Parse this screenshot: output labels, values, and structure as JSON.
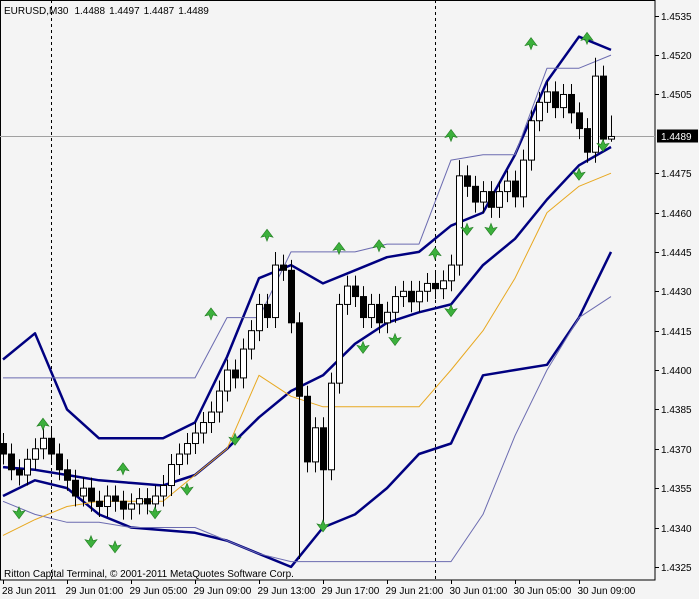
{
  "chart_data": {
    "type": "candlestick",
    "title": "EURUSD,M30",
    "annotation": "Ritton Capital Terminal, © 2001-2011 MetaQuotes Software Corp.",
    "open": [
      1.4372,
      1.4368,
      1.4362,
      1.436,
      1.4366,
      1.437,
      1.4374,
      1.4368,
      1.4362,
      1.4358,
      1.4352,
      1.4355,
      1.435,
      1.4348,
      1.4352,
      1.435,
      1.4347,
      1.4349,
      1.4351,
      1.4349,
      1.4352,
      1.4356,
      1.4364,
      1.4368,
      1.4372,
      1.4376,
      1.438,
      1.4384,
      1.4392,
      1.44,
      1.4397,
      1.4408,
      1.4415,
      1.4425,
      1.442,
      1.444,
      1.4438,
      1.4418,
      1.439,
      1.4365,
      1.4378,
      1.4362,
      1.4395,
      1.4425,
      1.4432,
      1.4428,
      1.442,
      1.4425,
      1.4418,
      1.4422,
      1.4428,
      1.443,
      1.4426,
      1.443,
      1.4433,
      1.4431,
      1.4434,
      1.444,
      1.4474,
      1.447,
      1.4464,
      1.4468,
      1.4462,
      1.4468,
      1.4472,
      1.4466,
      1.448,
      1.4495,
      1.4502,
      1.4506,
      1.45,
      1.4505,
      1.4498,
      1.4492,
      1.4483,
      1.4512,
      1.4488
    ],
    "high": [
      1.4376,
      1.4372,
      1.4366,
      1.437,
      1.4374,
      1.438,
      1.4378,
      1.4372,
      1.4366,
      1.4362,
      1.4359,
      1.4359,
      1.4354,
      1.4356,
      1.4356,
      1.4354,
      1.4353,
      1.4355,
      1.4355,
      1.4356,
      1.436,
      1.4368,
      1.4372,
      1.4376,
      1.438,
      1.4384,
      1.4388,
      1.4396,
      1.4404,
      1.4404,
      1.4412,
      1.4419,
      1.4429,
      1.4429,
      1.4445,
      1.4444,
      1.4442,
      1.4422,
      1.4394,
      1.4382,
      1.4382,
      1.4399,
      1.4429,
      1.4436,
      1.4436,
      1.4432,
      1.4429,
      1.4429,
      1.4426,
      1.4432,
      1.4434,
      1.4434,
      1.4434,
      1.4437,
      1.4437,
      1.4438,
      1.4444,
      1.448,
      1.4478,
      1.4474,
      1.4472,
      1.4472,
      1.4472,
      1.4476,
      1.4476,
      1.4484,
      1.4499,
      1.4506,
      1.451,
      1.451,
      1.4509,
      1.4509,
      1.4502,
      1.4496,
      1.4519,
      1.4516,
      1.4497
    ],
    "low": [
      1.4364,
      1.4358,
      1.4356,
      1.4356,
      1.4362,
      1.4366,
      1.4364,
      1.4358,
      1.4354,
      1.4348,
      1.4348,
      1.4346,
      1.4344,
      1.4344,
      1.4346,
      1.4343,
      1.4343,
      1.4345,
      1.4345,
      1.4345,
      1.4348,
      1.4352,
      1.436,
      1.4364,
      1.4368,
      1.4372,
      1.4376,
      1.438,
      1.4388,
      1.4393,
      1.4393,
      1.4404,
      1.4411,
      1.4416,
      1.4416,
      1.4434,
      1.4414,
      1.4328,
      1.4361,
      1.4361,
      1.434,
      1.4358,
      1.4391,
      1.4421,
      1.4424,
      1.4416,
      1.4416,
      1.4414,
      1.4414,
      1.4418,
      1.4424,
      1.4422,
      1.4422,
      1.4426,
      1.4427,
      1.4427,
      1.443,
      1.4436,
      1.4466,
      1.446,
      1.446,
      1.4458,
      1.4458,
      1.4464,
      1.4462,
      1.4462,
      1.4476,
      1.4491,
      1.4498,
      1.4496,
      1.4496,
      1.4494,
      1.4488,
      1.4479,
      1.4479,
      1.4484,
      1.4487
    ],
    "close": [
      1.4368,
      1.4362,
      1.436,
      1.4366,
      1.437,
      1.4374,
      1.4368,
      1.4362,
      1.4358,
      1.4352,
      1.4355,
      1.435,
      1.4348,
      1.4352,
      1.435,
      1.4347,
      1.4349,
      1.4351,
      1.4349,
      1.4352,
      1.4356,
      1.4364,
      1.4368,
      1.4372,
      1.4376,
      1.438,
      1.4384,
      1.4392,
      1.44,
      1.4397,
      1.4408,
      1.4415,
      1.4425,
      1.442,
      1.444,
      1.4438,
      1.4418,
      1.439,
      1.4365,
      1.4378,
      1.4362,
      1.4395,
      1.4425,
      1.4432,
      1.4428,
      1.442,
      1.4425,
      1.4418,
      1.4422,
      1.4428,
      1.443,
      1.4426,
      1.443,
      1.4433,
      1.4431,
      1.4434,
      1.444,
      1.4474,
      1.447,
      1.4464,
      1.4468,
      1.4462,
      1.4468,
      1.4472,
      1.4466,
      1.448,
      1.4495,
      1.4502,
      1.4506,
      1.45,
      1.4505,
      1.4498,
      1.4492,
      1.4483,
      1.4512,
      1.4488,
      1.4489
    ],
    "lines_x": [
      0,
      4,
      8,
      12,
      16,
      20,
      24,
      28,
      32,
      36,
      40,
      44,
      48,
      52,
      56,
      60,
      64,
      68,
      72,
      76
    ],
    "lines": [
      {
        "color": "#000080",
        "width": 2.5,
        "values": [
          1.4404,
          1.4414,
          1.4385,
          1.4374,
          1.4374,
          1.4374,
          1.438,
          1.4405,
          1.4435,
          1.444,
          1.4433,
          1.4438,
          1.4443,
          1.4445,
          1.4455,
          1.446,
          1.4482,
          1.451,
          1.4527,
          1.4522
        ]
      },
      {
        "color": "#000080",
        "width": 2.5,
        "values": [
          1.4363,
          1.4362,
          1.436,
          1.4358,
          1.4357,
          1.4356,
          1.436,
          1.437,
          1.4382,
          1.4392,
          1.4398,
          1.441,
          1.4418,
          1.4422,
          1.4425,
          1.444,
          1.445,
          1.4465,
          1.4478,
          1.4485
        ]
      },
      {
        "color": "#000080",
        "width": 2.5,
        "values": [
          1.4352,
          1.4358,
          1.4355,
          1.4345,
          1.434,
          1.4339,
          1.4338,
          1.4335,
          1.433,
          1.4325,
          1.434,
          1.4345,
          1.4355,
          1.4368,
          1.4372,
          1.4398,
          1.44,
          1.4402,
          1.442,
          1.4445
        ]
      },
      {
        "color": "#6b6bb0",
        "width": 1,
        "values": [
          1.4397,
          1.4397,
          1.4397,
          1.4397,
          1.4397,
          1.4397,
          1.4397,
          1.442,
          1.442,
          1.4445,
          1.4445,
          1.4445,
          1.4448,
          1.4448,
          1.448,
          1.4482,
          1.4482,
          1.4515,
          1.4515,
          1.452
        ]
      },
      {
        "color": "#6b6bb0",
        "width": 1,
        "values": [
          1.435,
          1.4345,
          1.4342,
          1.4342,
          1.434,
          1.434,
          1.434,
          1.4335,
          1.433,
          1.4327,
          1.4327,
          1.4327,
          1.4327,
          1.4327,
          1.4327,
          1.4345,
          1.4375,
          1.44,
          1.442,
          1.4428
        ]
      },
      {
        "color": "#e8a820",
        "width": 1,
        "values": [
          1.4337,
          1.4343,
          1.4348,
          1.435,
          1.435,
          1.435,
          1.436,
          1.437,
          1.4398,
          1.439,
          1.4386,
          1.4386,
          1.4386,
          1.4386,
          1.44,
          1.4415,
          1.4435,
          1.446,
          1.447,
          1.4475
        ]
      }
    ],
    "arrows_up": {
      "color": "#3cb03c",
      "x": [
        5,
        15,
        26,
        33,
        42,
        47,
        54,
        56,
        66,
        73
      ],
      "values": [
        1.4379,
        1.4362,
        1.4421,
        1.4451,
        1.4446,
        1.4447,
        1.4444,
        1.4489,
        1.4524,
        1.4526
      ]
    },
    "arrows_down": {
      "color": "#3cb03c",
      "x": [
        2,
        11,
        14,
        19,
        23,
        29,
        40,
        45,
        49,
        56,
        58,
        61,
        72,
        75
      ],
      "values": [
        1.4346,
        1.4335,
        1.4333,
        1.4346,
        1.4355,
        1.4374,
        1.4341,
        1.4409,
        1.4412,
        1.4423,
        1.4454,
        1.4454,
        1.4475,
        1.4486
      ]
    },
    "last_price": 1.4489,
    "day_separators": [
      6,
      54
    ],
    "xlim": [
      -0.375,
      81.5
    ],
    "ylim": [
      1.432,
      1.4541
    ],
    "yticks": [
      1.4535,
      {
        "value": 1.452,
        "label": "1.4520"
      },
      1.4505,
      1.4475,
      {
        "value": 1.446,
        "label": "1.4460"
      },
      1.4445,
      {
        "value": 1.443,
        "label": "1.4430"
      },
      1.4415,
      {
        "value": 1.44,
        "label": "1.4400"
      },
      1.4385,
      {
        "value": 1.437,
        "label": "1.4370"
      },
      1.4355,
      {
        "value": 1.434,
        "label": "1.4340"
      },
      1.4325
    ],
    "xticks": [
      {
        "value": 0,
        "label": "28 Jun 2011"
      },
      {
        "value": 8,
        "label": "29 Jun 01:00"
      },
      {
        "value": 16,
        "label": "29 Jun 05:00"
      },
      {
        "value": 24,
        "label": "29 Jun 09:00"
      },
      {
        "value": 32,
        "label": "29 Jun 13:00"
      },
      {
        "value": 40,
        "label": "29 Jun 17:00"
      },
      {
        "value": 48,
        "label": "29 Jun 21:00"
      },
      {
        "value": 56,
        "label": "30 Jun 01:00"
      },
      {
        "value": 64,
        "label": "30 Jun 05:00"
      },
      {
        "value": 72,
        "label": "30 Jun 09:00"
      }
    ]
  }
}
